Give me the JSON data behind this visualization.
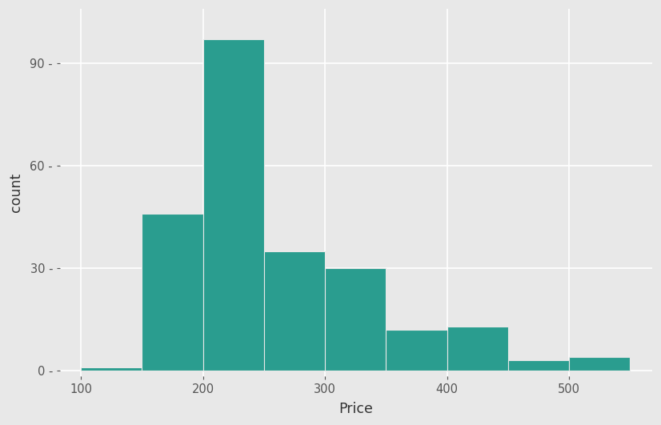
{
  "title": "",
  "xlabel": "Price",
  "ylabel": "count",
  "bar_color": "#2a9d8f",
  "background_color": "#e8e8e8",
  "grid_color": "#ffffff",
  "bin_edges": [
    100,
    150,
    200,
    250,
    300,
    350,
    400,
    450,
    500,
    550
  ],
  "counts": [
    1,
    46,
    97,
    35,
    30,
    12,
    13,
    3,
    4
  ],
  "xlim": [
    83,
    568
  ],
  "ylim": [
    -1.5,
    106
  ],
  "yticks": [
    0,
    30,
    60,
    90
  ],
  "xticks": [
    100,
    200,
    300,
    400,
    500
  ],
  "tick_label_size": 10.5,
  "axis_label_size": 12.5,
  "bar_edge_color": "#e8e8e8",
  "bar_linewidth": 0.8,
  "figsize": [
    8.26,
    5.31
  ],
  "dpi": 100
}
